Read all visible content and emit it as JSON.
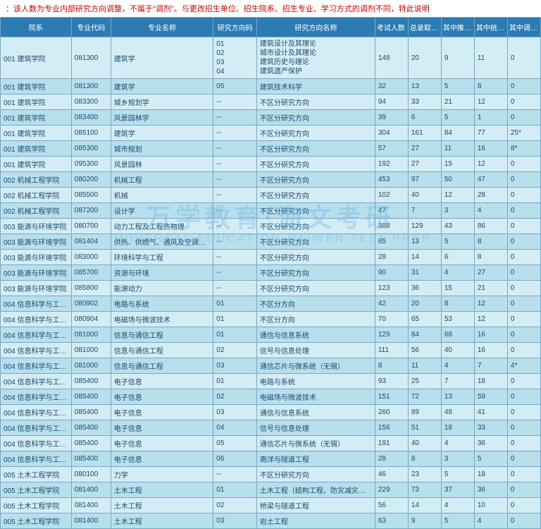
{
  "note": "：该人数为专业内部研究方向调整，不属于\"调剂\"。与更改招生单位、招生院系、招生专业、学习方式的调剂不同，特此说明",
  "watermark": {
    "line1": "万学教育·海文考研",
    "line2": "UNIVERSAL EDUCATION·HAIWEN TEST PREP"
  },
  "columns": [
    "院系",
    "专业代码",
    "专业名称",
    "研究方向码",
    "研究方向名称",
    "考试人数",
    "总录取人数",
    "其中推免录取人数",
    "其中统考录取人数",
    "其中调剂录取人数"
  ],
  "rows": [
    [
      "001 建筑学院",
      "081300",
      "建筑学",
      "01\n02\n03\n04",
      "建筑设计及其理论\n城市设计及其理论\n建筑历史与理论\n建筑遗产保护",
      "148",
      "20",
      "9",
      "11",
      "0"
    ],
    [
      "001 建筑学院",
      "081300",
      "建筑学",
      "05",
      "建筑技术科学",
      "32",
      "13",
      "5",
      "8",
      "0"
    ],
    [
      "001 建筑学院",
      "083300",
      "城乡规划学",
      "--",
      "不区分研究方向",
      "94",
      "33",
      "21",
      "12",
      "0"
    ],
    [
      "001 建筑学院",
      "083400",
      "风景园林学",
      "--",
      "不区分研究方向",
      "39",
      "6",
      "5",
      "1",
      "0"
    ],
    [
      "001 建筑学院",
      "085100",
      "建筑学",
      "--",
      "不区分研究方向",
      "304",
      "161",
      "84",
      "77",
      "25*"
    ],
    [
      "001 建筑学院",
      "085300",
      "城市规划",
      "--",
      "不区分研究方向",
      "57",
      "27",
      "11",
      "16",
      "8*"
    ],
    [
      "001 建筑学院",
      "095300",
      "风景园林",
      "--",
      "不区分研究方向",
      "192",
      "27",
      "15",
      "12",
      "0"
    ],
    [
      "002 机械工程学院",
      "080200",
      "机械工程",
      "--",
      "不区分研究方向",
      "453",
      "97",
      "50",
      "47",
      "0"
    ],
    [
      "002 机械工程学院",
      "085500",
      "机械",
      "--",
      "不区分研究方向",
      "102",
      "40",
      "12",
      "28",
      "0"
    ],
    [
      "002 机械工程学院",
      "087200",
      "设计学",
      "--",
      "不区分研究方向",
      "47",
      "7",
      "3",
      "4",
      "0"
    ],
    [
      "003 能源与环境学院",
      "080700",
      "动力工程及工程热物理",
      "--",
      "不区分研究方向",
      "388",
      "129",
      "43",
      "86",
      "0"
    ],
    [
      "003 能源与环境学院",
      "081404",
      "供热、供燃气、通风及空调工程",
      "--",
      "不区分研究方向",
      "65",
      "13",
      "5",
      "8",
      "0"
    ],
    [
      "003 能源与环境学院",
      "083000",
      "环境科学与工程",
      "--",
      "不区分研究方向",
      "28",
      "14",
      "6",
      "8",
      "0"
    ],
    [
      "003 能源与环境学院",
      "085700",
      "资源与环境",
      "--",
      "不区分研究方向",
      "90",
      "31",
      "4",
      "27",
      "0"
    ],
    [
      "003 能源与环境学院",
      "085800",
      "能源动力",
      "--",
      "不区分研究方向",
      "123",
      "36",
      "15",
      "21",
      "0"
    ],
    [
      "004 信息科学与工程学院",
      "080902",
      "电路与系统",
      "01",
      "不区分方向",
      "42",
      "20",
      "8",
      "12",
      "0"
    ],
    [
      "004 信息科学与工程学院",
      "080904",
      "电磁场与微波技术",
      "01",
      "不区分方向",
      "70",
      "65",
      "53",
      "12",
      "0"
    ],
    [
      "004 信息科学与工程学院",
      "081000",
      "信息与通信工程",
      "01",
      "通信与信息系统",
      "129",
      "84",
      "68",
      "16",
      "0"
    ],
    [
      "004 信息科学与工程学院",
      "081000",
      "信息与通信工程",
      "02",
      "信号与信息处理",
      "111",
      "56",
      "40",
      "16",
      "0"
    ],
    [
      "004 信息科学与工程学院",
      "081000",
      "信息与通信工程",
      "03",
      "通信芯片与微系统（无锡）",
      "8",
      "11",
      "4",
      "7",
      "4*"
    ],
    [
      "004 信息科学与工程学院",
      "085400",
      "电子信息",
      "01",
      "电路与系统",
      "93",
      "25",
      "7",
      "18",
      "0"
    ],
    [
      "004 信息科学与工程学院",
      "085400",
      "电子信息",
      "02",
      "电磁场与微波技术",
      "151",
      "72",
      "13",
      "59",
      "0"
    ],
    [
      "004 信息科学与工程学院",
      "085400",
      "电子信息",
      "03",
      "通信与信息系统",
      "260",
      "89",
      "48",
      "41",
      "0"
    ],
    [
      "004 信息科学与工程学院",
      "085400",
      "电子信息",
      "04",
      "信号与信息处理",
      "156",
      "51",
      "18",
      "33",
      "0"
    ],
    [
      "004 信息科学与工程学院",
      "085400",
      "电子信息",
      "05",
      "通信芯片与微系统（无锡）",
      "191",
      "40",
      "4",
      "36",
      "0"
    ],
    [
      "004 信息科学与工程学院",
      "085400",
      "电子信息",
      "06",
      "南洋与隧道工程",
      "28",
      "8",
      "3",
      "5",
      "0"
    ],
    [
      "005 土木工程学院",
      "080100",
      "力学",
      "--",
      "不区分研究方向",
      "46",
      "23",
      "5",
      "18",
      "0"
    ],
    [
      "005 土木工程学院",
      "081400",
      "土木工程",
      "01",
      "土木工程（结构工程、防灾减灾工程）",
      "229",
      "73",
      "37",
      "36",
      "0"
    ],
    [
      "005 土木工程学院",
      "081400",
      "土木工程",
      "02",
      "桥梁与隧道工程",
      "56",
      "14",
      "4",
      "10",
      "0"
    ],
    [
      "005 土木工程学院",
      "081400",
      "土木工程",
      "03",
      "岩土工程",
      "63",
      "9",
      "5",
      "4",
      "0"
    ]
  ],
  "colors": {
    "header": "#2b7cb3",
    "rowA": "#d4ecf4",
    "rowB": "#b8dfec",
    "border": "#7aa8c4",
    "text": "#1a4a6e",
    "note": "#c00"
  }
}
